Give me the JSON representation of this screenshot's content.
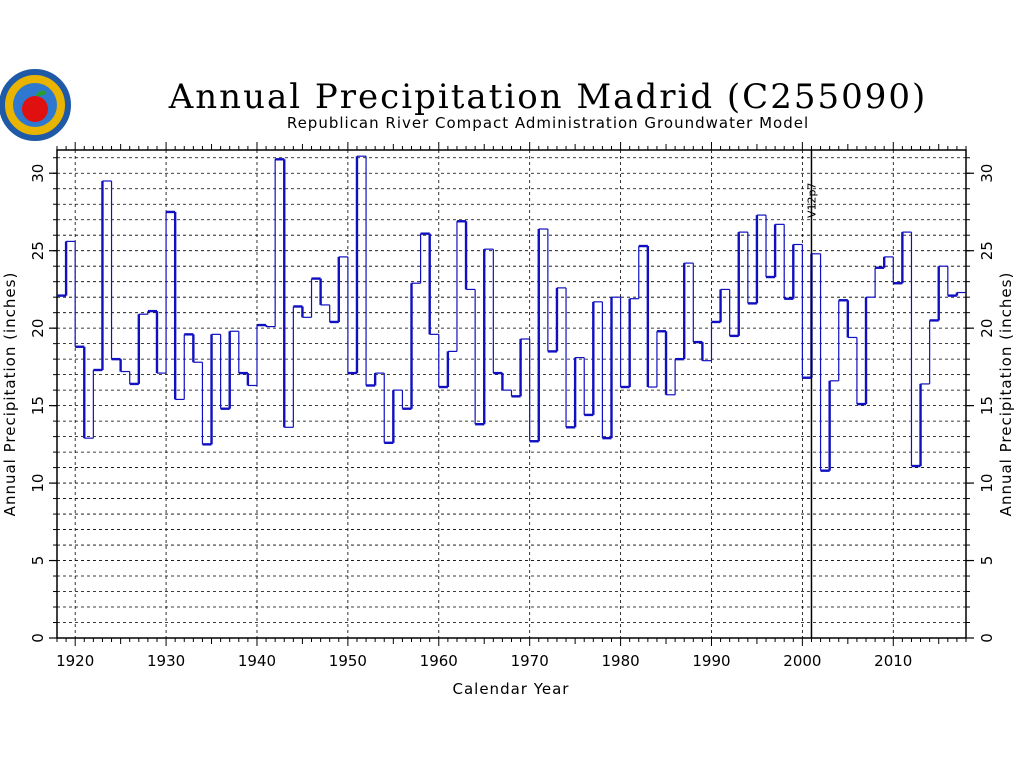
{
  "logo": {
    "icon": "kansas-apple-seal-icon",
    "colors": [
      "#1e5aa8",
      "#e8b400",
      "#e01010",
      "#2a9d2a"
    ]
  },
  "chart_data": {
    "type": "line",
    "title": "Annual Precipitation Madrid (C255090)",
    "subtitle": "Republican River Compact Administration Groundwater Model",
    "xlabel": "Calendar Year",
    "ylabel": "Annual Precipitation (inches)",
    "ylabel_right": "Annual Precipitation (inches)",
    "xlim": [
      1918,
      2018
    ],
    "ylim": [
      0,
      31.5
    ],
    "xticks": [
      1920,
      1930,
      1940,
      1950,
      1960,
      1970,
      1980,
      1990,
      2000,
      2010
    ],
    "yticks": [
      0,
      5,
      10,
      15,
      20,
      25,
      30
    ],
    "grid": true,
    "step": true,
    "line_color": "#1010c0",
    "annotations": [
      {
        "x": 2001,
        "text": "V12p7"
      }
    ],
    "series": [
      {
        "x": [
          1918,
          1919,
          1920,
          1921,
          1922,
          1923,
          1924,
          1925,
          1926,
          1927,
          1928,
          1929,
          1930,
          1931,
          1932,
          1933,
          1934,
          1935,
          1936,
          1937,
          1938,
          1939,
          1940,
          1941,
          1942,
          1943,
          1944,
          1945,
          1946,
          1947,
          1948,
          1949,
          1950,
          1951,
          1952,
          1953,
          1954,
          1955,
          1956,
          1957,
          1958,
          1959,
          1960,
          1961,
          1962,
          1963,
          1964,
          1965,
          1966,
          1967,
          1968,
          1969,
          1970,
          1971,
          1972,
          1973,
          1974,
          1975,
          1976,
          1977,
          1978,
          1979,
          1980,
          1981,
          1982,
          1983,
          1984,
          1985,
          1986,
          1987,
          1988,
          1989,
          1990,
          1991,
          1992,
          1993,
          1994,
          1995,
          1996,
          1997,
          1998,
          1999,
          2000,
          2001,
          2002,
          2003,
          2004,
          2005,
          2006,
          2007,
          2008,
          2009,
          2010,
          2011,
          2012,
          2013,
          2014,
          2015,
          2016,
          2017
        ],
        "values": [
          22.1,
          25.6,
          18.8,
          12.9,
          17.3,
          29.5,
          18.0,
          17.2,
          16.4,
          20.9,
          21.1,
          17.1,
          27.5,
          15.4,
          19.6,
          17.8,
          12.5,
          19.6,
          14.8,
          19.8,
          17.1,
          16.3,
          20.2,
          20.1,
          30.9,
          13.6,
          21.4,
          20.7,
          23.2,
          21.5,
          20.4,
          24.6,
          17.1,
          31.1,
          16.3,
          17.1,
          12.6,
          16.0,
          14.8,
          22.9,
          26.1,
          19.6,
          16.2,
          18.5,
          26.9,
          22.5,
          13.8,
          25.1,
          17.1,
          16.0,
          15.6,
          19.3,
          12.7,
          26.4,
          18.5,
          22.6,
          13.6,
          18.1,
          14.4,
          21.7,
          12.9,
          22.0,
          16.2,
          21.9,
          25.3,
          16.2,
          19.8,
          15.7,
          18.0,
          24.2,
          19.1,
          17.9,
          20.4,
          22.5,
          19.5,
          26.2,
          21.6,
          27.3,
          23.3,
          26.7,
          21.9,
          25.4,
          16.8,
          24.8,
          10.8,
          16.6,
          21.8,
          19.4,
          15.1,
          22.0,
          23.9,
          24.6,
          22.9,
          26.2,
          11.1,
          16.4,
          20.5,
          24.0,
          22.1,
          22.3
        ]
      }
    ]
  }
}
